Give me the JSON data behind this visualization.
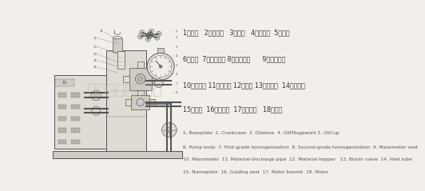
{
  "bg_color": "#f2efea",
  "chinese_lines": [
    "1、底板   2、曲轴箱   3、连接   4、加油口  5、油杯",
    "6、保握  7、一级均管 8、二级均管      9、压力表座",
    "10、压力表 11、出料管 12、料门 13、出料阀  14、进料阀",
    "15、标牌  16、调向座  17、电机座   18、电机"
  ],
  "english_lines": [
    "1. Baseplate  2. Crankcase  3. Oilstone  4. OilFillagework 5. OilCup",
    "6. Pump body  7. First-grade homogenization  8. Second-grade homogenization  9. Manometer seat",
    "10. Manometer  11. Material-discharge pipe  12. Material hopper   13. Blockr valve  14. Inlet tube",
    "15. Nameplate  16. Guiding seat  17. Motor bonnet  18. Motor"
  ],
  "watermark": "盐城亿丰机械公司",
  "text_color": "#333333",
  "english_color": "#555555",
  "watermark_color": "#c0b8a8"
}
